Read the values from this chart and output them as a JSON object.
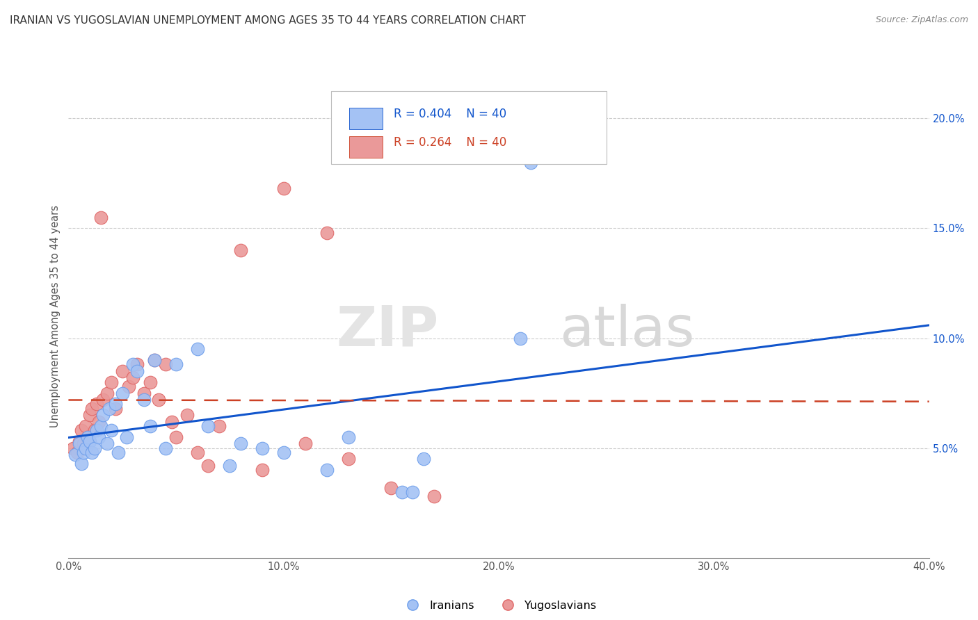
{
  "title": "IRANIAN VS YUGOSLAVIAN UNEMPLOYMENT AMONG AGES 35 TO 44 YEARS CORRELATION CHART",
  "source": "Source: ZipAtlas.com",
  "ylabel": "Unemployment Among Ages 35 to 44 years",
  "xlim": [
    0.0,
    0.4
  ],
  "ylim": [
    0.0,
    0.22
  ],
  "x_ticks": [
    0.0,
    0.1,
    0.2,
    0.3,
    0.4
  ],
  "x_tick_labels": [
    "0.0%",
    "10.0%",
    "20.0%",
    "30.0%",
    "40.0%"
  ],
  "y_ticks": [
    0.05,
    0.1,
    0.15,
    0.2
  ],
  "y_tick_labels": [
    "5.0%",
    "10.0%",
    "15.0%",
    "20.0%"
  ],
  "iranian_R": 0.404,
  "iranian_N": 40,
  "yugoslav_R": 0.264,
  "yugoslav_N": 40,
  "iranian_color": "#a4c2f4",
  "yugoslav_color": "#ea9999",
  "iranian_line_color": "#1155cc",
  "yugoslav_line_color": "#cc4125",
  "iranian_x": [
    0.003,
    0.005,
    0.006,
    0.007,
    0.008,
    0.009,
    0.01,
    0.011,
    0.012,
    0.013,
    0.014,
    0.015,
    0.016,
    0.018,
    0.019,
    0.02,
    0.022,
    0.023,
    0.025,
    0.027,
    0.03,
    0.032,
    0.035,
    0.038,
    0.04,
    0.045,
    0.05,
    0.06,
    0.065,
    0.075,
    0.08,
    0.09,
    0.1,
    0.12,
    0.13,
    0.155,
    0.16,
    0.165,
    0.21,
    0.215
  ],
  "iranian_y": [
    0.047,
    0.052,
    0.043,
    0.048,
    0.05,
    0.055,
    0.053,
    0.048,
    0.05,
    0.058,
    0.055,
    0.06,
    0.065,
    0.052,
    0.068,
    0.058,
    0.07,
    0.048,
    0.075,
    0.055,
    0.088,
    0.085,
    0.072,
    0.06,
    0.09,
    0.05,
    0.088,
    0.095,
    0.06,
    0.042,
    0.052,
    0.05,
    0.048,
    0.04,
    0.055,
    0.03,
    0.03,
    0.045,
    0.1,
    0.18
  ],
  "yugoslav_x": [
    0.002,
    0.004,
    0.005,
    0.006,
    0.007,
    0.008,
    0.009,
    0.01,
    0.011,
    0.012,
    0.013,
    0.014,
    0.015,
    0.016,
    0.018,
    0.02,
    0.022,
    0.025,
    0.028,
    0.03,
    0.032,
    0.035,
    0.038,
    0.04,
    0.042,
    0.045,
    0.048,
    0.05,
    0.055,
    0.06,
    0.065,
    0.07,
    0.08,
    0.09,
    0.1,
    0.11,
    0.12,
    0.13,
    0.15,
    0.17
  ],
  "yugoslav_y": [
    0.05,
    0.048,
    0.053,
    0.058,
    0.052,
    0.06,
    0.055,
    0.065,
    0.068,
    0.058,
    0.07,
    0.062,
    0.155,
    0.072,
    0.075,
    0.08,
    0.068,
    0.085,
    0.078,
    0.082,
    0.088,
    0.075,
    0.08,
    0.09,
    0.072,
    0.088,
    0.062,
    0.055,
    0.065,
    0.048,
    0.042,
    0.06,
    0.14,
    0.04,
    0.168,
    0.052,
    0.148,
    0.045,
    0.032,
    0.028
  ],
  "grid_color": "#cccccc",
  "bg_color": "#ffffff"
}
